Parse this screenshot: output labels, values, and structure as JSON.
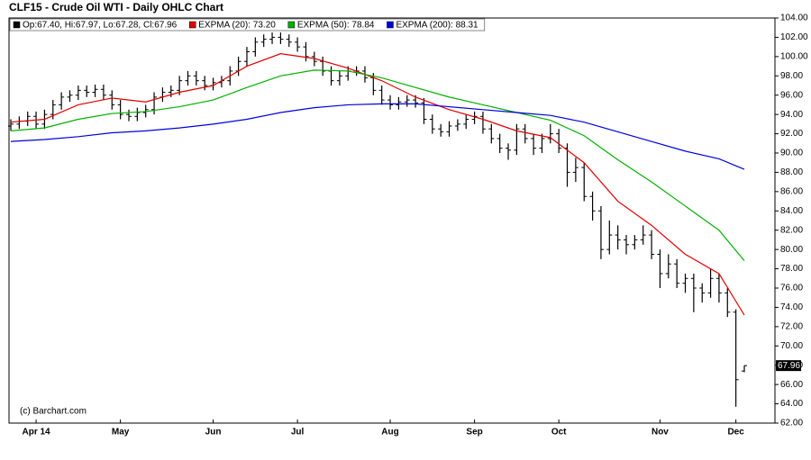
{
  "chart_data": {
    "type": "ohlc",
    "title": "CLF15 - Crude Oil WTI - Daily OHLC Chart",
    "watermark": "(c) Barchart.com",
    "ohlc_legend": "Op:67.40, Hi:67.97, Lo:67.28, Cl:67.96",
    "legend": "top-left",
    "color": "#000000",
    "categories": [
      null,
      null,
      null,
      "Apr 14",
      null,
      null,
      null,
      null,
      null,
      null,
      null,
      null,
      null,
      "May",
      null,
      null,
      null,
      null,
      null,
      null,
      null,
      null,
      null,
      null,
      "Jun",
      null,
      null,
      null,
      null,
      null,
      null,
      null,
      null,
      null,
      "Jul",
      null,
      null,
      null,
      null,
      null,
      null,
      null,
      null,
      null,
      null,
      "Aug",
      null,
      null,
      null,
      null,
      null,
      null,
      null,
      null,
      null,
      "Sep",
      null,
      null,
      null,
      null,
      null,
      null,
      null,
      null,
      null,
      "Oct",
      null,
      null,
      null,
      null,
      null,
      null,
      null,
      null,
      null,
      null,
      null,
      "Nov",
      null,
      null,
      null,
      null,
      null,
      null,
      null,
      null,
      "Dec",
      null
    ],
    "open": [
      92.8,
      93,
      93.3,
      93.8,
      93,
      94,
      95,
      95.8,
      96,
      96.5,
      96.3,
      96.6,
      96,
      95,
      94,
      93.8,
      94.2,
      94.5,
      95.8,
      96.3,
      96.5,
      97.5,
      98,
      97.5,
      97,
      97.3,
      97.5,
      98.5,
      99.5,
      100.5,
      101.5,
      101.8,
      102,
      101.8,
      101.5,
      101,
      100,
      99.5,
      98.5,
      97.5,
      98,
      98.5,
      98.5,
      97.8,
      96.5,
      95.5,
      95,
      95.3,
      95.5,
      95.2,
      93.5,
      92.5,
      92.2,
      92.8,
      93,
      93.5,
      93.8,
      92.5,
      91.5,
      90.5,
      90.3,
      92.5,
      91.5,
      90.5,
      91.5,
      92,
      90.5,
      88,
      88.5,
      85.5,
      84,
      80,
      81.5,
      81,
      80.5,
      81,
      81.5,
      79.5,
      77.5,
      78.5,
      76.5,
      77,
      76,
      75.5,
      77,
      75.5,
      73.5,
      67.4
    ],
    "high": [
      93.5,
      93.8,
      94.3,
      94.3,
      94.5,
      95.5,
      96.3,
      96.5,
      97,
      97,
      97.1,
      97.1,
      96.5,
      95.5,
      94.5,
      94.7,
      95,
      96.3,
      96.8,
      97,
      98,
      98.5,
      98.5,
      98,
      97.8,
      98,
      99,
      100,
      101,
      102,
      102.3,
      102.5,
      102.5,
      102.3,
      102,
      101.5,
      100.5,
      100,
      99,
      98.5,
      99,
      99,
      99,
      98.3,
      97,
      96,
      95.8,
      96,
      96,
      95.7,
      94,
      93,
      93.3,
      93.5,
      94,
      94.3,
      94.3,
      93,
      92,
      91,
      93,
      93,
      92,
      92,
      93,
      92.5,
      91,
      89.5,
      89,
      86,
      84.5,
      83,
      82.5,
      81.5,
      81.5,
      82.5,
      82,
      80,
      79.5,
      79,
      77.5,
      77.5,
      76.5,
      78,
      77.5,
      76,
      73.8,
      67.97
    ],
    "low": [
      92.3,
      92.5,
      92.8,
      92.5,
      92.5,
      93.5,
      94.5,
      95.3,
      95.5,
      95.8,
      95.8,
      95.5,
      94.5,
      93.5,
      93.3,
      93.3,
      93.7,
      94,
      95.3,
      95.8,
      96,
      97,
      97,
      96.5,
      96.5,
      96.8,
      97,
      98,
      99,
      100,
      101,
      101.3,
      101.3,
      101,
      100.5,
      99.5,
      99,
      98,
      97,
      97,
      97.5,
      98,
      97.3,
      96,
      95,
      94.5,
      94.5,
      94.8,
      94.7,
      93,
      92,
      91.7,
      91.7,
      92.3,
      92.5,
      93,
      92,
      91,
      90,
      89.3,
      89.8,
      91,
      89.8,
      90,
      91,
      90,
      86.5,
      87,
      85,
      83,
      79,
      79.5,
      80,
      79.5,
      80,
      80.5,
      79,
      76,
      77,
      76,
      75.5,
      73.5,
      74.5,
      75,
      74.5,
      73,
      63.7,
      67.28
    ],
    "close": [
      93,
      93.3,
      93.8,
      93,
      94,
      95,
      95.8,
      96,
      96.5,
      96.3,
      96.6,
      96,
      95,
      94,
      93.8,
      94.2,
      94.5,
      95.8,
      96.3,
      96.5,
      97.5,
      98,
      97.5,
      97,
      97.3,
      97.5,
      98.5,
      99.5,
      100.5,
      101.5,
      101.8,
      102,
      101.8,
      101.5,
      101,
      100,
      99.5,
      98.5,
      97.5,
      98,
      98.5,
      98.5,
      97.8,
      96.5,
      95.5,
      95,
      95.3,
      95.5,
      95.2,
      93.5,
      92.5,
      92.2,
      92.8,
      93,
      93.5,
      93.8,
      92.5,
      91.5,
      90.5,
      90.3,
      92.5,
      91.5,
      90.5,
      91.5,
      92,
      90.5,
      88,
      88.5,
      85.5,
      84,
      80,
      81.5,
      81,
      80.5,
      81,
      81.5,
      79.5,
      77.5,
      78.5,
      76.5,
      77,
      76,
      75.5,
      77,
      75.5,
      73.5,
      66.5,
      67.96
    ],
    "series": [
      {
        "name": "EXPMA (20): 73.20",
        "color": "#e00000",
        "x": [
          0,
          4,
          8,
          12,
          16,
          20,
          24,
          28,
          32,
          36,
          40,
          44,
          48,
          52,
          56,
          60,
          64,
          68,
          72,
          76,
          80,
          84,
          87
        ],
        "values": [
          93.2,
          93.5,
          95,
          95.7,
          95.3,
          96.3,
          97,
          99,
          100.3,
          99.8,
          98.8,
          97.5,
          95.8,
          94.5,
          93.5,
          92.3,
          91.6,
          89,
          85,
          82.5,
          79.5,
          77.5,
          73.2
        ]
      },
      {
        "name": "EXPMA (50): 78.84",
        "color": "#00b000",
        "x": [
          0,
          4,
          8,
          12,
          16,
          20,
          24,
          28,
          32,
          36,
          40,
          44,
          48,
          52,
          56,
          60,
          64,
          68,
          72,
          76,
          80,
          84,
          87
        ],
        "values": [
          92.3,
          92.6,
          93.5,
          94.1,
          94.3,
          94.8,
          95.5,
          96.8,
          98,
          98.6,
          98.5,
          97.8,
          96.8,
          95.8,
          95,
          94.2,
          93.4,
          91.8,
          89.3,
          87,
          84.5,
          82,
          78.84
        ]
      },
      {
        "name": "EXPMA (200): 88.31",
        "color": "#0000e0",
        "x": [
          0,
          4,
          8,
          12,
          16,
          20,
          24,
          28,
          32,
          36,
          40,
          44,
          48,
          52,
          56,
          60,
          64,
          68,
          72,
          76,
          80,
          84,
          87
        ],
        "values": [
          91.2,
          91.4,
          91.7,
          92.1,
          92.3,
          92.6,
          93,
          93.5,
          94.2,
          94.7,
          95,
          95.1,
          95.1,
          94.8,
          94.5,
          94.2,
          93.9,
          93.2,
          92.2,
          91.2,
          90.2,
          89.4,
          88.31
        ]
      }
    ],
    "ylim": [
      62,
      104
    ],
    "yticks": [
      {
        "value": 62,
        "label": "62.00"
      },
      {
        "value": 64,
        "label": "64.00"
      },
      {
        "value": 66,
        "label": "66.00"
      },
      {
        "value": 68,
        "label": "68.00"
      },
      {
        "value": 70,
        "label": "70.00"
      },
      {
        "value": 72,
        "label": "72.00"
      },
      {
        "value": 74,
        "label": "74.00"
      },
      {
        "value": 76,
        "label": "76.00"
      },
      {
        "value": 78,
        "label": "78.00"
      },
      {
        "value": 80,
        "label": "80.00"
      },
      {
        "value": 82,
        "label": "82.00"
      },
      {
        "value": 84,
        "label": "84.00"
      },
      {
        "value": 86,
        "label": "86.00"
      },
      {
        "value": 88,
        "label": "88.00"
      },
      {
        "value": 90,
        "label": "90.00"
      },
      {
        "value": 92,
        "label": "92.00"
      },
      {
        "value": 94,
        "label": "94.00"
      },
      {
        "value": 96,
        "label": "96.00"
      },
      {
        "value": 98,
        "label": "98.00"
      },
      {
        "value": 100,
        "label": "100.00"
      },
      {
        "value": 102,
        "label": "102.00"
      },
      {
        "value": 104,
        "label": "104.00"
      }
    ]
  }
}
